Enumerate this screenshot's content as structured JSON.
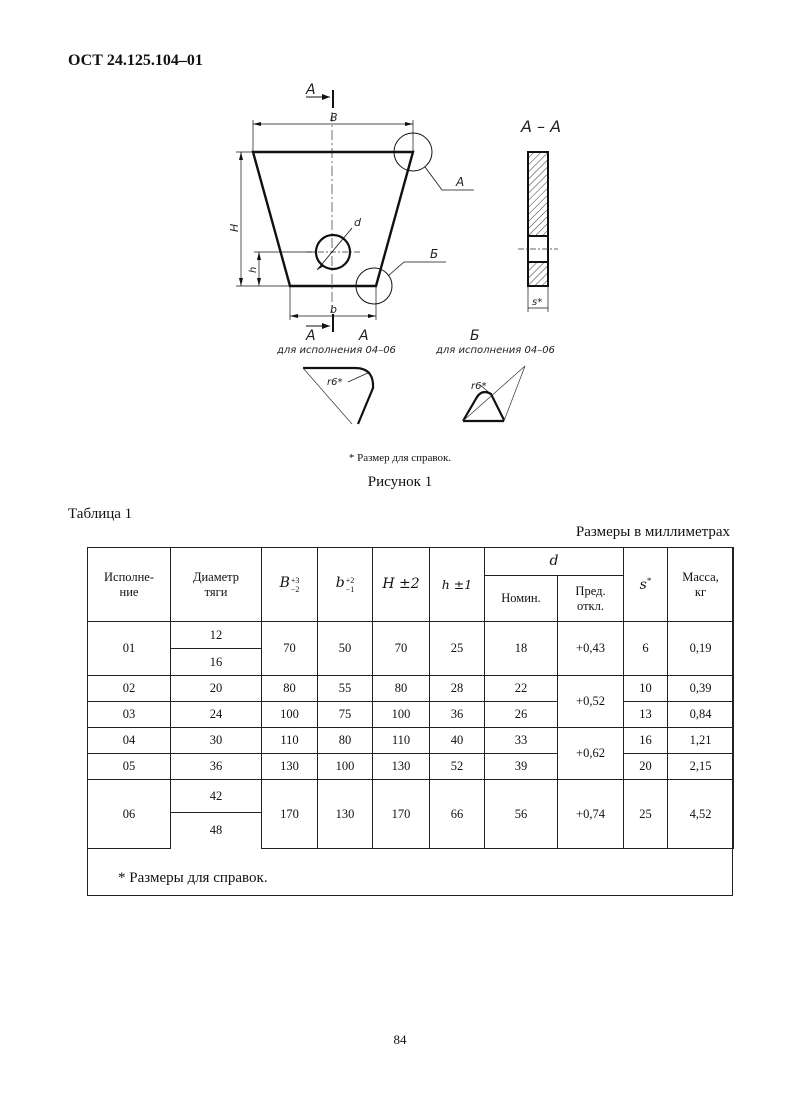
{
  "document_code": "ОСТ 24.125.104–01",
  "drawing": {
    "section_marker": "А",
    "dim_B": "B",
    "dim_b": "b",
    "dim_H": "H",
    "dim_h": "h",
    "dim_d": "d",
    "dim_s": "s*",
    "callout_A": "А",
    "callout_B": "Б",
    "section_title": "А – А",
    "detail_A_title": "А",
    "detail_A_note": "для исполнения 04–06",
    "detail_A_radius": "r6*",
    "detail_B_title": "Б",
    "detail_B_note": "для исполнения 04–06",
    "detail_B_radius": "r6*"
  },
  "figure_footnote": "* Размер для справок.",
  "figure_caption": "Рисунок 1",
  "table": {
    "label": "Таблица 1",
    "units": "Размеры в миллиметрах",
    "headers": {
      "version": "Исполне-\nние",
      "rod_diameter": "Диаметр\nтяги",
      "B": "B",
      "B_tol_upper": "+3",
      "B_tol_lower": "−2",
      "b": "b",
      "b_tol_upper": "+2",
      "b_tol_lower": "−1",
      "H": "H ±2",
      "h": "h ±1",
      "d": "d",
      "d_nominal": "Номин.",
      "d_deviation": "Пред.\nоткл.",
      "s": "s",
      "s_mark": "*",
      "mass": "Масса,\nкг"
    },
    "rows": [
      {
        "version": "01",
        "diameters": [
          "12",
          "16"
        ],
        "B": "70",
        "b": "50",
        "H": "70",
        "h": "25",
        "d_nom": "18",
        "d_dev": "+0,43",
        "s": "6",
        "mass": "0,19"
      },
      {
        "version": "02",
        "diameters": [
          "20"
        ],
        "B": "80",
        "b": "55",
        "H": "80",
        "h": "28",
        "d_nom": "22",
        "d_dev": "+0,52",
        "s": "10",
        "mass": "0,39"
      },
      {
        "version": "03",
        "diameters": [
          "24"
        ],
        "B": "100",
        "b": "75",
        "H": "100",
        "h": "36",
        "d_nom": "26",
        "d_dev": "",
        "s": "13",
        "mass": "0,84"
      },
      {
        "version": "04",
        "diameters": [
          "30"
        ],
        "B": "110",
        "b": "80",
        "H": "110",
        "h": "40",
        "d_nom": "33",
        "d_dev": "+0,62",
        "s": "16",
        "mass": "1,21"
      },
      {
        "version": "05",
        "diameters": [
          "36"
        ],
        "B": "130",
        "b": "100",
        "H": "130",
        "h": "52",
        "d_nom": "39",
        "d_dev": "",
        "s": "20",
        "mass": "2,15"
      },
      {
        "version": "06",
        "diameters": [
          "42",
          "48"
        ],
        "B": "170",
        "b": "130",
        "H": "170",
        "h": "66",
        "d_nom": "56",
        "d_dev": "+0,74",
        "s": "25",
        "mass": "4,52"
      }
    ],
    "footnote": "* Размеры для справок."
  },
  "page_number": "84"
}
